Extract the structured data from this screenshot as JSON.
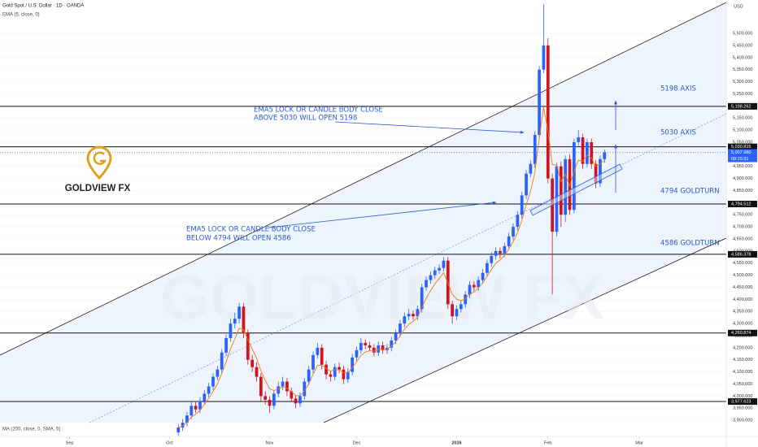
{
  "chart_data": {
    "type": "candlestick",
    "title": "Gold Spot / U.S. Dollar · 1D · OANDA",
    "indicator_label": "EMA (5, close, 0)",
    "ema_period": 5,
    "ema_color": "#f57c00",
    "ma_label": "MA (200, close, 0, SMA, 5)",
    "y_axis_label": "USD",
    "brand": "GOLDVIEW FX",
    "up_color": "#2962ff",
    "down_color": "#d1121f",
    "xlim": [
      -41,
      126
    ],
    "xticks": [
      {
        "value": -25,
        "label": "Sep"
      },
      {
        "value": -2,
        "label": "Oct"
      },
      {
        "value": 21,
        "label": "Nov"
      },
      {
        "value": 41,
        "label": "Dec"
      },
      {
        "value": 64,
        "label": "2026"
      },
      {
        "value": 85,
        "label": "Feb"
      },
      {
        "value": 106,
        "label": "Mar"
      }
    ],
    "ylim": [
      3840,
      5638
    ],
    "yticks": [
      {
        "value": 3900,
        "label": "3,900.000"
      },
      {
        "value": 3950,
        "label": "3,950.000"
      },
      {
        "value": 4000,
        "label": "4,000.000"
      },
      {
        "value": 4050,
        "label": "4,050.000"
      },
      {
        "value": 4100,
        "label": "4,100.000"
      },
      {
        "value": 4150,
        "label": "4,150.000"
      },
      {
        "value": 4200,
        "label": "4,200.000"
      },
      {
        "value": 4250,
        "label": "4,250.000"
      },
      {
        "value": 4300,
        "label": "4,300.000"
      },
      {
        "value": 4350,
        "label": "4,350.000"
      },
      {
        "value": 4400,
        "label": "4,400.000"
      },
      {
        "value": 4450,
        "label": "4,450.000"
      },
      {
        "value": 4500,
        "label": "4,500.000"
      },
      {
        "value": 4550,
        "label": "4,550.000"
      },
      {
        "value": 4600,
        "label": "4,600.000"
      },
      {
        "value": 4650,
        "label": "4,650.000"
      },
      {
        "value": 4700,
        "label": "4,700.000"
      },
      {
        "value": 4750,
        "label": "4,750.000"
      },
      {
        "value": 4800,
        "label": "4,800.000"
      },
      {
        "value": 4850,
        "label": "4,850.000"
      },
      {
        "value": 4900,
        "label": "4,900.000"
      },
      {
        "value": 4950,
        "label": "4,950.000"
      },
      {
        "value": 5000,
        "label": "5,000.000"
      },
      {
        "value": 5050,
        "label": "5,050.000"
      },
      {
        "value": 5100,
        "label": "5,100.000"
      },
      {
        "value": 5150,
        "label": "5,150.000"
      },
      {
        "value": 5200,
        "label": "5,200.000"
      },
      {
        "value": 5250,
        "label": "5,250.000"
      },
      {
        "value": 5300,
        "label": "5,300.000"
      },
      {
        "value": 5350,
        "label": "5,350.000"
      },
      {
        "value": 5400,
        "label": "5,400.000"
      },
      {
        "value": 5450,
        "label": "5,450.000"
      },
      {
        "value": 5500,
        "label": "5,500.000"
      }
    ],
    "levels": [
      {
        "value": 5198.262,
        "label": "5,198.262"
      },
      {
        "value": 5030.815,
        "label": "5,030.815"
      },
      {
        "value": 4794.512,
        "label": "4,794.512"
      },
      {
        "value": 4586.378,
        "label": "4,586.378"
      },
      {
        "value": 4260.874,
        "label": "4,260.874"
      },
      {
        "value": 3977.623,
        "label": "3,977.623"
      }
    ],
    "last_price": {
      "value": 5007.98,
      "label": "5,007.980",
      "countdown": "09:15:31"
    },
    "level_notes": [
      "5198 AXIS",
      "5030 AXIS",
      "4794 GOLDTURN",
      "4586 GOLDTURN"
    ],
    "notes": [
      [
        "EMA5 LOCK OR CANDLE BODY CLOSE",
        "ABOVE 5030 WILL OPEN 5198"
      ],
      [
        "EMA5 LOCK OR CANDLE BODY CLOSE",
        "BELOW 4794 WILL OPEN 4586"
      ]
    ],
    "series": [
      {
        "name": "XAUUSD",
        "values": [
          [
            3850,
            3885,
            3835,
            3870
          ],
          [
            3870,
            3905,
            3855,
            3890
          ],
          [
            3890,
            3935,
            3875,
            3920
          ],
          [
            3920,
            3975,
            3905,
            3960
          ],
          [
            3960,
            3975,
            3930,
            3945
          ],
          [
            3945,
            3995,
            3930,
            3980
          ],
          [
            3980,
            4025,
            3965,
            4010
          ],
          [
            4010,
            4055,
            3995,
            4040
          ],
          [
            4040,
            4095,
            4025,
            4080
          ],
          [
            4080,
            4125,
            4065,
            4110
          ],
          [
            4110,
            4195,
            4095,
            4180
          ],
          [
            4180,
            4255,
            4165,
            4240
          ],
          [
            4240,
            4320,
            4225,
            4300
          ],
          [
            4300,
            4345,
            4280,
            4320
          ],
          [
            4320,
            4385,
            4300,
            4370
          ],
          [
            4370,
            4385,
            4240,
            4260
          ],
          [
            4260,
            4275,
            4130,
            4150
          ],
          [
            4150,
            4170,
            4100,
            4120
          ],
          [
            4120,
            4140,
            4060,
            4080
          ],
          [
            4080,
            4095,
            3980,
            4000
          ],
          [
            4000,
            4020,
            3965,
            3985
          ],
          [
            3985,
            4000,
            3930,
            3960
          ],
          [
            3960,
            4025,
            3945,
            4010
          ],
          [
            4010,
            4060,
            3995,
            4040
          ],
          [
            4040,
            4080,
            4025,
            4060
          ],
          [
            4060,
            4075,
            4000,
            4020
          ],
          [
            4020,
            4035,
            3975,
            3990
          ],
          [
            3990,
            4005,
            3950,
            3970
          ],
          [
            3970,
            4015,
            3955,
            4000
          ],
          [
            4000,
            4075,
            3985,
            4060
          ],
          [
            4060,
            4125,
            4045,
            4110
          ],
          [
            4110,
            4185,
            4095,
            4170
          ],
          [
            4170,
            4220,
            4155,
            4200
          ],
          [
            4200,
            4215,
            4110,
            4130
          ],
          [
            4130,
            4145,
            4070,
            4090
          ],
          [
            4090,
            4105,
            4060,
            4080
          ],
          [
            4080,
            4135,
            4065,
            4120
          ],
          [
            4120,
            4140,
            4095,
            4110
          ],
          [
            4110,
            4125,
            4050,
            4070
          ],
          [
            4070,
            4115,
            4055,
            4100
          ],
          [
            4100,
            4175,
            4085,
            4160
          ],
          [
            4160,
            4205,
            4145,
            4190
          ],
          [
            4190,
            4240,
            4175,
            4220
          ],
          [
            4220,
            4235,
            4195,
            4210
          ],
          [
            4210,
            4225,
            4185,
            4200
          ],
          [
            4200,
            4215,
            4165,
            4180
          ],
          [
            4180,
            4225,
            4165,
            4210
          ],
          [
            4210,
            4225,
            4175,
            4190
          ],
          [
            4190,
            4215,
            4175,
            4200
          ],
          [
            4200,
            4245,
            4185,
            4230
          ],
          [
            4230,
            4275,
            4215,
            4260
          ],
          [
            4260,
            4315,
            4245,
            4300
          ],
          [
            4300,
            4345,
            4285,
            4330
          ],
          [
            4330,
            4360,
            4315,
            4340
          ],
          [
            4340,
            4355,
            4315,
            4330
          ],
          [
            4330,
            4375,
            4315,
            4360
          ],
          [
            4360,
            4465,
            4345,
            4450
          ],
          [
            4450,
            4495,
            4435,
            4480
          ],
          [
            4480,
            4515,
            4465,
            4500
          ],
          [
            4500,
            4535,
            4485,
            4520
          ],
          [
            4520,
            4545,
            4505,
            4530
          ],
          [
            4530,
            4575,
            4515,
            4560
          ],
          [
            4560,
            4575,
            4360,
            4380
          ],
          [
            4380,
            4395,
            4300,
            4330
          ],
          [
            4330,
            4375,
            4315,
            4360
          ],
          [
            4360,
            4395,
            4345,
            4380
          ],
          [
            4380,
            4435,
            4365,
            4420
          ],
          [
            4420,
            4475,
            4405,
            4460
          ],
          [
            4460,
            4475,
            4435,
            4450
          ],
          [
            4450,
            4495,
            4435,
            4480
          ],
          [
            4480,
            4525,
            4465,
            4510
          ],
          [
            4510,
            4565,
            4495,
            4550
          ],
          [
            4550,
            4595,
            4535,
            4580
          ],
          [
            4580,
            4615,
            4565,
            4600
          ],
          [
            4600,
            4615,
            4570,
            4590
          ],
          [
            4590,
            4635,
            4575,
            4620
          ],
          [
            4620,
            4675,
            4605,
            4660
          ],
          [
            4660,
            4715,
            4645,
            4700
          ],
          [
            4700,
            4765,
            4685,
            4750
          ],
          [
            4750,
            4845,
            4735,
            4830
          ],
          [
            4830,
            4935,
            4815,
            4920
          ],
          [
            4920,
            4975,
            4905,
            4960
          ],
          [
            4960,
            5095,
            4945,
            5080
          ],
          [
            5080,
            5365,
            5065,
            5350
          ],
          [
            5350,
            5620,
            5335,
            5450
          ],
          [
            5450,
            5480,
            4880,
            4900
          ],
          [
            4900,
            4920,
            4420,
            4680
          ],
          [
            4680,
            4965,
            4660,
            4950
          ],
          [
            4950,
            4970,
            4700,
            4750
          ],
          [
            4750,
            4995,
            4720,
            4980
          ],
          [
            4980,
            5000,
            4750,
            4770
          ],
          [
            4770,
            5065,
            4755,
            5050
          ],
          [
            5050,
            5100,
            5035,
            5070
          ],
          [
            5070,
            5085,
            4940,
            4960
          ],
          [
            4960,
            5065,
            4945,
            5050
          ],
          [
            5050,
            5065,
            4940,
            4960
          ],
          [
            4960,
            4975,
            4860,
            4880
          ],
          [
            4880,
            4995,
            4865,
            4980
          ],
          [
            4980,
            5020,
            4965,
            5008
          ]
        ]
      }
    ]
  }
}
